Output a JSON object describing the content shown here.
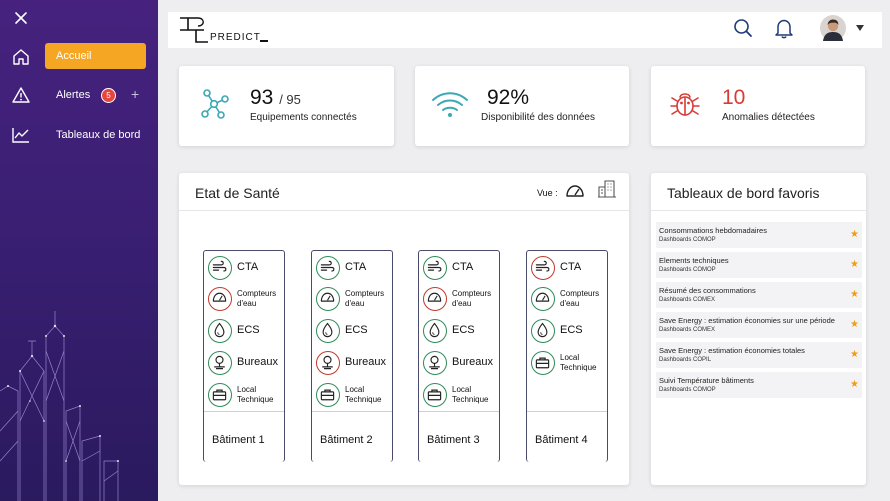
{
  "sidebar": {
    "items": [
      {
        "label": "Accueil"
      },
      {
        "label": "Alertes",
        "badge": "5"
      },
      {
        "label": "Tableaux de bord"
      }
    ],
    "accent_color": "#f5a623"
  },
  "topbar": {
    "brand": "PREDICT"
  },
  "stats": [
    {
      "value": "93",
      "suffix": "/ 95",
      "label": "Equipements connectés",
      "icon": "network-icon"
    },
    {
      "value": "92%",
      "label": "Disponibilité des données",
      "icon": "wifi-icon"
    },
    {
      "value": "10",
      "label": "Anomalies détectées",
      "icon": "bug-icon"
    }
  ],
  "health": {
    "title": "Etat de Santé",
    "view_label": "Vue :",
    "buildings": [
      {
        "name": "Bâtiment 1",
        "rows": [
          {
            "label": "CTA",
            "status": "green",
            "icon": "wind-icon"
          },
          {
            "label": "Compteurs d'eau",
            "status": "red",
            "icon": "meter-icon"
          },
          {
            "label": "ECS",
            "status": "green",
            "icon": "drop-icon"
          },
          {
            "label": "Bureaux",
            "status": "green",
            "icon": "desk-icon"
          },
          {
            "label": "Local Technique",
            "status": "green",
            "icon": "toolbox-icon"
          }
        ]
      },
      {
        "name": "Bâtiment 2",
        "rows": [
          {
            "label": "CTA",
            "status": "green",
            "icon": "wind-icon"
          },
          {
            "label": "Compteurs d'eau",
            "status": "green",
            "icon": "meter-icon"
          },
          {
            "label": "ECS",
            "status": "green",
            "icon": "drop-icon"
          },
          {
            "label": "Bureaux",
            "status": "red",
            "icon": "desk-icon"
          },
          {
            "label": "Local Technique",
            "status": "green",
            "icon": "toolbox-icon"
          }
        ]
      },
      {
        "name": "Bâtiment 3",
        "rows": [
          {
            "label": "CTA",
            "status": "green",
            "icon": "wind-icon"
          },
          {
            "label": "Compteurs d'eau",
            "status": "red",
            "icon": "meter-icon"
          },
          {
            "label": "ECS",
            "status": "green",
            "icon": "drop-icon"
          },
          {
            "label": "Bureaux",
            "status": "green",
            "icon": "desk-icon"
          },
          {
            "label": "Local Technique",
            "status": "green",
            "icon": "toolbox-icon"
          }
        ]
      },
      {
        "name": "Bâtiment 4",
        "rows": [
          {
            "label": "CTA",
            "status": "red",
            "icon": "wind-icon"
          },
          {
            "label": "Compteurs d'eau",
            "status": "green",
            "icon": "meter-icon"
          },
          {
            "label": "ECS",
            "status": "green",
            "icon": "drop-icon"
          },
          {
            "label": "Local Technique",
            "status": "green",
            "icon": "toolbox-icon"
          }
        ]
      }
    ]
  },
  "favorites": {
    "title": "Tableaux de bord favoris",
    "items": [
      {
        "title": "Consommations hebdomadaires",
        "sub": "Dashboards COMOP"
      },
      {
        "title": "Elements techniques",
        "sub": "Dashboards COMOP"
      },
      {
        "title": "Résumé des consommations",
        "sub": "Dashboards COMEX"
      },
      {
        "title": "Save Energy : estimation économies sur une période",
        "sub": "Dashboards COMEX"
      },
      {
        "title": "Save Energy : estimation économies totales",
        "sub": "Dashboards COPIL"
      },
      {
        "title": "Suivi Température bâtiments",
        "sub": "Dashboards COMOP"
      }
    ]
  }
}
